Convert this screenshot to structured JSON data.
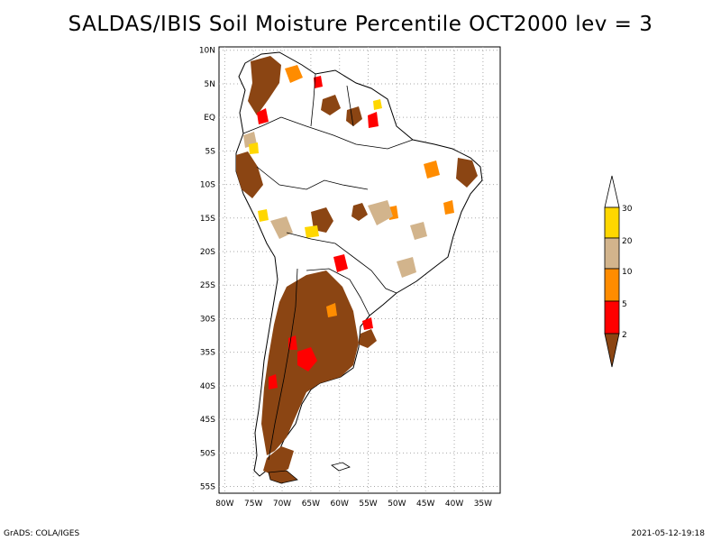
{
  "title": "SALDAS/IBIS Soil Moisture Percentile OCT2000 lev = 3",
  "map": {
    "region": "South America",
    "lat_labels": [
      "10N",
      "5N",
      "EQ",
      "5S",
      "10S",
      "15S",
      "20S",
      "25S",
      "30S",
      "35S",
      "40S",
      "45S",
      "50S",
      "55S"
    ],
    "lat_values": [
      10,
      5,
      0,
      -5,
      -10,
      -15,
      -20,
      -25,
      -30,
      -35,
      -40,
      -45,
      -50,
      -55
    ],
    "lon_labels": [
      "80W",
      "75W",
      "70W",
      "65W",
      "60W",
      "55W",
      "50W",
      "45W",
      "40W",
      "35W"
    ],
    "lon_values": [
      -80,
      -75,
      -70,
      -65,
      -60,
      -55,
      -50,
      -45,
      -40,
      -35
    ]
  },
  "legend": {
    "labels": [
      "30",
      "20",
      "10",
      "5",
      "2"
    ],
    "colors": {
      "below_2": "#8b4513",
      "2_5": "#ff0000",
      "5_10": "#ff8c00",
      "10_20": "#d2b48c",
      "20_30": "#ffd700",
      "above_30": "#ffffff"
    }
  },
  "footer": {
    "left": "GrADS: COLA/IGES",
    "right": "2021-05-12-19:18"
  }
}
